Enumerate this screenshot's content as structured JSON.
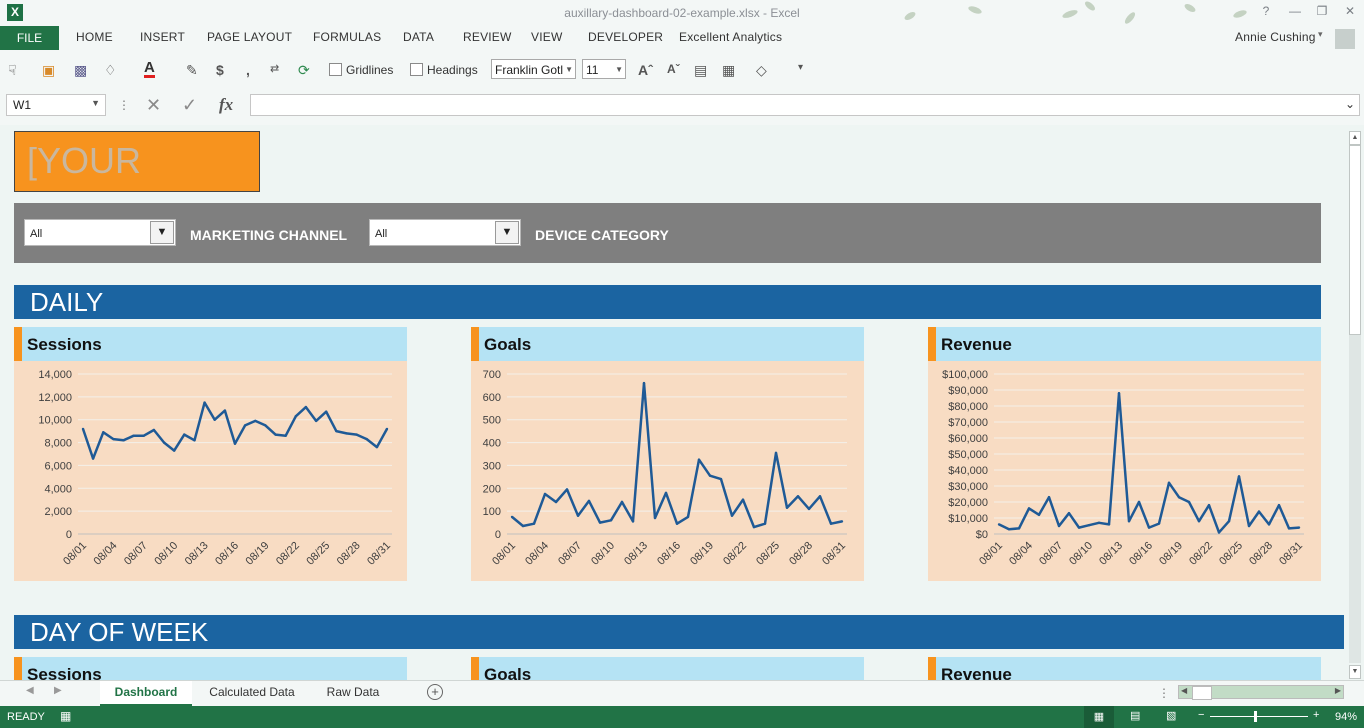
{
  "titlebar": {
    "filename": "auxillary-dashboard-02-example.xlsx - Excel",
    "app_icon": "excel-icon"
  },
  "ribbon": {
    "file": "FILE",
    "tabs": [
      "HOME",
      "INSERT",
      "PAGE LAYOUT",
      "FORMULAS",
      "DATA",
      "REVIEW",
      "VIEW",
      "DEVELOPER",
      "Excellent Analytics"
    ],
    "user": "Annie Cushing"
  },
  "toolbar": {
    "gridlines_label": "Gridlines",
    "headings_label": "Headings",
    "font_name": "Franklin Gotl",
    "font_size": "11",
    "currency_symbol": "$",
    "comma_symbol": ","
  },
  "formula_bar": {
    "name_box": "W1",
    "fx_label": "fx",
    "formula": ""
  },
  "dashboard": {
    "logo_text": "[YOUR LOGO]",
    "filters": [
      {
        "value": "All",
        "label": "MARKETING CHANNEL"
      },
      {
        "value": "All",
        "label": "DEVICE CATEGORY"
      }
    ],
    "sections": {
      "daily": "DAILY",
      "day_of_week": "DAY OF WEEK"
    },
    "card_titles": [
      "Sessions",
      "Goals",
      "Revenue"
    ],
    "colors": {
      "section": "#1b64a1",
      "accent": "#f7931e",
      "card_head": "#b5e3f4",
      "card_body": "#f8dcc3",
      "line": "#1f5a96"
    }
  },
  "chart_data": [
    {
      "type": "line",
      "title": "Sessions",
      "x": [
        "08/01",
        "08/02",
        "08/03",
        "08/04",
        "08/05",
        "08/06",
        "08/07",
        "08/08",
        "08/09",
        "08/10",
        "08/11",
        "08/12",
        "08/13",
        "08/14",
        "08/15",
        "08/16",
        "08/17",
        "08/18",
        "08/19",
        "08/20",
        "08/21",
        "08/22",
        "08/23",
        "08/24",
        "08/25",
        "08/26",
        "08/27",
        "08/28",
        "08/29",
        "08/30",
        "08/31"
      ],
      "tick_labels": [
        "08/01",
        "08/04",
        "08/07",
        "08/10",
        "08/13",
        "08/16",
        "08/19",
        "08/22",
        "08/25",
        "08/28",
        "08/31"
      ],
      "y_ticks": [
        "0",
        "2,000",
        "4,000",
        "6,000",
        "8,000",
        "10,000",
        "12,000",
        "14,000"
      ],
      "values": [
        9200,
        6600,
        8900,
        8300,
        8200,
        8600,
        8600,
        9100,
        8000,
        7300,
        8700,
        8200,
        11500,
        10000,
        10800,
        7900,
        9500,
        9900,
        9500,
        8700,
        8600,
        10300,
        11100,
        9900,
        10700,
        9000,
        8800,
        8700,
        8300,
        7600,
        9200
      ],
      "ylim": [
        0,
        14000
      ],
      "grid": true
    },
    {
      "type": "line",
      "title": "Goals",
      "x": [
        "08/01",
        "08/02",
        "08/03",
        "08/04",
        "08/05",
        "08/06",
        "08/07",
        "08/08",
        "08/09",
        "08/10",
        "08/11",
        "08/12",
        "08/13",
        "08/14",
        "08/15",
        "08/16",
        "08/17",
        "08/18",
        "08/19",
        "08/20",
        "08/21",
        "08/22",
        "08/23",
        "08/24",
        "08/25",
        "08/26",
        "08/27",
        "08/28",
        "08/29",
        "08/30",
        "08/31"
      ],
      "tick_labels": [
        "08/01",
        "08/04",
        "08/07",
        "08/10",
        "08/13",
        "08/16",
        "08/19",
        "08/22",
        "08/25",
        "08/28",
        "08/31"
      ],
      "y_ticks": [
        "0",
        "100",
        "200",
        "300",
        "400",
        "500",
        "600",
        "700"
      ],
      "values": [
        75,
        35,
        45,
        175,
        140,
        195,
        80,
        145,
        50,
        60,
        140,
        55,
        660,
        70,
        180,
        45,
        75,
        325,
        255,
        240,
        80,
        150,
        30,
        45,
        355,
        115,
        165,
        110,
        165,
        45,
        55
      ],
      "ylim": [
        0,
        700
      ],
      "grid": true
    },
    {
      "type": "line",
      "title": "Revenue",
      "x": [
        "08/01",
        "08/02",
        "08/03",
        "08/04",
        "08/05",
        "08/06",
        "08/07",
        "08/08",
        "08/09",
        "08/10",
        "08/11",
        "08/12",
        "08/13",
        "08/14",
        "08/15",
        "08/16",
        "08/17",
        "08/18",
        "08/19",
        "08/20",
        "08/21",
        "08/22",
        "08/23",
        "08/24",
        "08/25",
        "08/26",
        "08/27",
        "08/28",
        "08/29",
        "08/30",
        "08/31"
      ],
      "tick_labels": [
        "08/01",
        "08/04",
        "08/07",
        "08/10",
        "08/13",
        "08/16",
        "08/19",
        "08/22",
        "08/25",
        "08/28",
        "08/31"
      ],
      "y_ticks": [
        "$0",
        "$10,000",
        "$20,000",
        "$30,000",
        "$40,000",
        "$50,000",
        "$60,000",
        "$70,000",
        "$80,000",
        "$90,000",
        "$100,000"
      ],
      "values": [
        6000,
        3000,
        3500,
        16000,
        12000,
        23000,
        5000,
        13000,
        4000,
        5500,
        7000,
        6000,
        88000,
        8000,
        20000,
        4000,
        6500,
        32000,
        23000,
        20000,
        8000,
        18000,
        1000,
        8000,
        36000,
        5000,
        14000,
        6000,
        18000,
        3500,
        4000
      ],
      "ylim": [
        0,
        100000
      ],
      "grid": true
    }
  ],
  "sheet_tabs": [
    "Dashboard",
    "Calculated Data",
    "Raw Data"
  ],
  "status": {
    "mode": "READY",
    "zoom": "94%"
  }
}
